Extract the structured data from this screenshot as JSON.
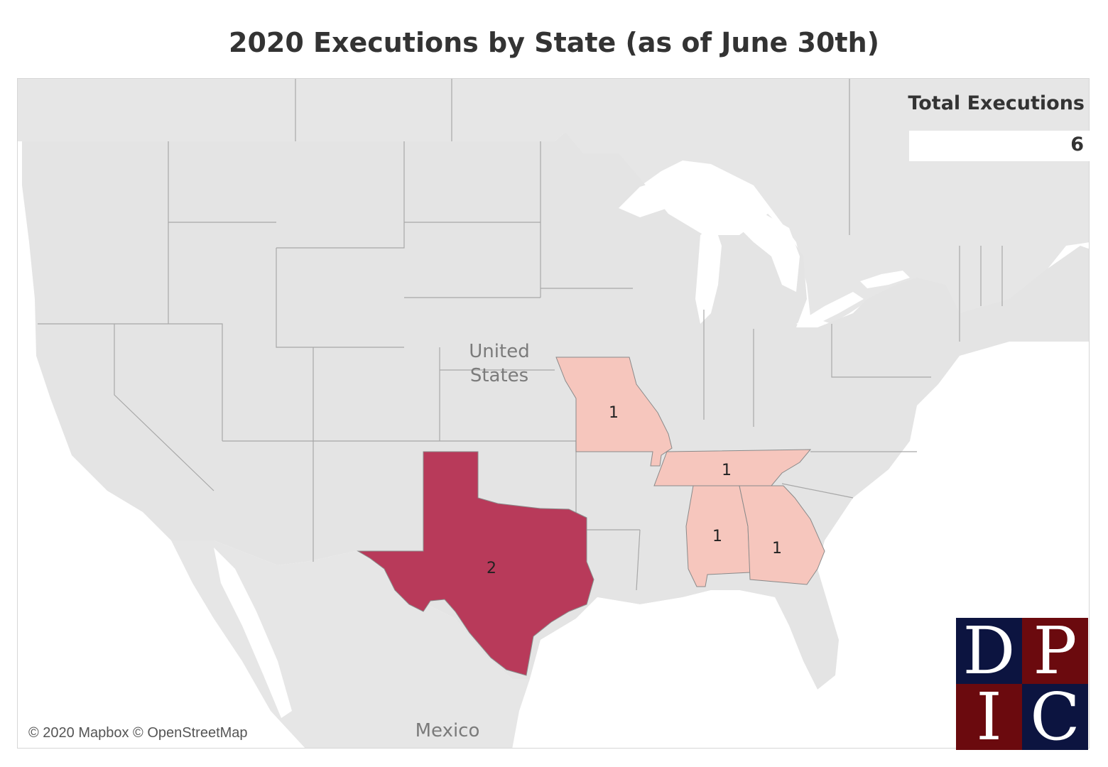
{
  "title": "2020 Executions by State (as of June 30th)",
  "total": {
    "label": "Total Executions",
    "value": "6"
  },
  "places": {
    "country_us": [
      "United",
      "States"
    ],
    "country_mx": "Mexico"
  },
  "states": [
    {
      "name": "Texas",
      "executions": 2,
      "fill": "#b83a5a"
    },
    {
      "name": "Missouri",
      "executions": 1,
      "fill": "#f6c6bd"
    },
    {
      "name": "Tennessee",
      "executions": 1,
      "fill": "#f6c6bd"
    },
    {
      "name": "Alabama",
      "executions": 1,
      "fill": "#f6c6bd"
    },
    {
      "name": "Georgia",
      "executions": 1,
      "fill": "#f6c6bd"
    }
  ],
  "colors": {
    "land": "#e4e4e4",
    "water": "#ffffff",
    "border": "#9a9a9a",
    "high": "#b83a5a",
    "low": "#f6c6bd"
  },
  "attribution": "© 2020 Mapbox © OpenStreetMap",
  "logo": {
    "letters": [
      "D",
      "P",
      "I",
      "C"
    ]
  }
}
